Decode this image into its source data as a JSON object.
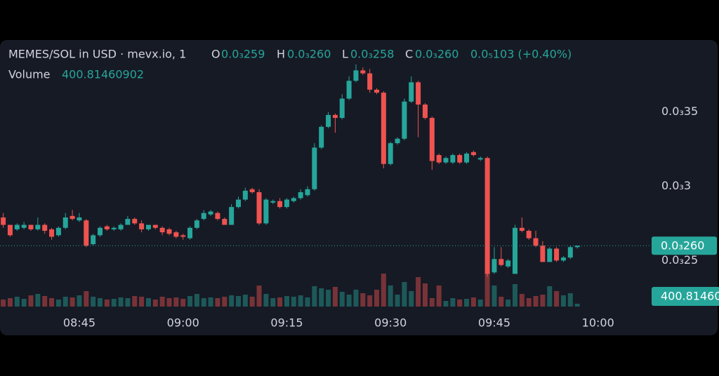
{
  "chart_data": {
    "type": "candlestick",
    "legend_header": {
      "pair": "MEMES/SOL in USD · mevx.io, 1",
      "o_key": "O",
      "o": "0.0₃259",
      "h_key": "H",
      "h": "0.0₃260",
      "l_key": "L",
      "l": "0.0₃258",
      "c_key": "C",
      "c": "0.0₃260",
      "change": "0.0₅103 (+0.40%)",
      "volume_key": "Volume"
    },
    "categories": [
      null,
      null,
      null,
      null,
      null,
      null,
      null,
      null,
      null,
      null,
      null,
      "08:45",
      null,
      null,
      null,
      null,
      null,
      null,
      null,
      null,
      null,
      null,
      null,
      null,
      null,
      null,
      "09:00",
      null,
      null,
      null,
      null,
      null,
      null,
      null,
      null,
      null,
      null,
      null,
      null,
      null,
      null,
      "09:15",
      null,
      null,
      null,
      null,
      null,
      null,
      null,
      null,
      null,
      null,
      null,
      null,
      null,
      null,
      "09:30",
      null,
      null,
      null,
      null,
      null,
      null,
      null,
      null,
      null,
      null,
      null,
      null,
      null,
      null,
      "09:45",
      null,
      null,
      null,
      null,
      null,
      null,
      null,
      null,
      null,
      null,
      null,
      null,
      null,
      null,
      "10:00",
      null,
      null,
      null,
      null,
      null,
      null
    ],
    "open": [
      0.000279,
      0.000274,
      0.000271,
      0.000272,
      0.000274,
      0.000271,
      0.000274,
      0.000271,
      0.000267,
      0.000272,
      0.00028,
      0.000277,
      0.000277,
      0.000261,
      0.000267,
      0.000273,
      0.000271,
      0.000271,
      0.000274,
      0.000278,
      0.000275,
      0.000271,
      0.000274,
      0.000272,
      0.000271,
      0.000269,
      0.000267,
      0.000265,
      0.000272,
      0.000278,
      0.000281,
      0.000282,
      0.000278,
      0.000274,
      0.000286,
      0.000291,
      0.000298,
      0.000296,
      0.000275,
      0.000289,
      0.00029,
      0.000286,
      0.00029,
      0.000292,
      0.000294,
      0.000298,
      0.000326,
      0.00034,
      0.000348,
      0.000346,
      0.000359,
      0.000371,
      0.000378,
      0.000376,
      0.000365,
      0.000363,
      0.000315,
      0.000329,
      0.000332,
      0.000357,
      0.00037,
      0.000355,
      0.000346,
      0.000321,
      0.000316,
      0.000316,
      0.000321,
      0.000316,
      0.000323,
      0.000318,
      0.000319,
      0.000242,
      0.000251,
      0.000246,
      0.000241,
      0.000272,
      0.00027,
      0.000265,
      0.00026,
      0.000249,
      0.000258,
      0.00025,
      0.000252,
      0.000259,
      null,
      null,
      null,
      null,
      null,
      null,
      null,
      null,
      null
    ],
    "high": [
      0.000282,
      0.000274,
      0.000275,
      0.000276,
      0.000274,
      0.000279,
      0.000275,
      0.000272,
      0.000273,
      0.000282,
      0.000284,
      0.000282,
      0.000278,
      0.000268,
      0.000273,
      0.000274,
      0.000273,
      0.000275,
      0.00028,
      0.000279,
      0.000277,
      0.000274,
      0.000274,
      0.000273,
      0.000272,
      0.00027,
      0.000268,
      0.000273,
      0.000278,
      0.000284,
      0.000284,
      0.000283,
      0.000279,
      0.000288,
      0.000293,
      0.000299,
      0.000299,
      0.000298,
      0.000292,
      0.000291,
      0.000292,
      0.000292,
      0.000293,
      0.000298,
      0.0003,
      0.000329,
      0.000341,
      0.00035,
      0.000349,
      0.000362,
      0.000374,
      0.000382,
      0.00038,
      0.000379,
      0.000366,
      0.000364,
      0.00033,
      0.000333,
      0.000359,
      0.000374,
      0.000371,
      0.000356,
      0.000347,
      0.000322,
      0.00032,
      0.000322,
      0.000322,
      0.000323,
      0.000324,
      0.00032,
      0.00032,
      0.000259,
      0.000259,
      0.000251,
      0.000274,
      0.000279,
      0.000271,
      0.00027,
      0.000263,
      0.000259,
      0.000259,
      0.000253,
      0.00026,
      0.00026,
      null,
      null,
      null,
      null,
      null,
      null,
      null,
      null,
      null
    ],
    "low": [
      0.000272,
      0.000266,
      0.00027,
      0.000271,
      0.00027,
      0.00027,
      0.000268,
      0.000264,
      0.000266,
      0.000271,
      0.000277,
      0.000276,
      0.000259,
      0.00026,
      0.000266,
      0.00027,
      0.00027,
      0.00027,
      0.000274,
      0.000274,
      0.000269,
      0.00027,
      0.000271,
      0.000267,
      0.000267,
      0.000265,
      0.000264,
      0.000264,
      0.000271,
      0.000277,
      0.00028,
      0.000277,
      0.000274,
      0.000274,
      0.000285,
      0.00029,
      0.000295,
      0.000274,
      0.000274,
      0.000288,
      0.000285,
      0.000285,
      0.000289,
      0.000291,
      0.000293,
      0.000297,
      0.000325,
      0.000339,
      0.000336,
      0.000345,
      0.000358,
      0.00037,
      0.000375,
      0.000363,
      0.000362,
      0.000312,
      0.000314,
      0.000328,
      0.000331,
      0.000356,
      0.000333,
      0.000345,
      0.000311,
      0.000315,
      0.000315,
      0.000315,
      0.000315,
      0.000315,
      0.00032,
      0.000317,
      0.000239,
      0.000241,
      0.000246,
      0.000245,
      0.000241,
      0.000269,
      0.000264,
      0.000259,
      0.000249,
      0.000249,
      0.000249,
      0.000249,
      0.000251,
      0.000258,
      null,
      null,
      null,
      null,
      null,
      null,
      null,
      null,
      null
    ],
    "close": [
      0.000274,
      0.000267,
      0.000274,
      0.000274,
      0.000271,
      0.000274,
      0.00027,
      0.000266,
      0.000272,
      0.000279,
      0.000278,
      0.000279,
      0.00026,
      0.000267,
      0.000272,
      0.000271,
      0.000272,
      0.000274,
      0.000278,
      0.000275,
      0.000271,
      0.000274,
      0.000272,
      0.000269,
      0.000268,
      0.000266,
      0.000266,
      0.000272,
      0.000277,
      0.000282,
      0.000283,
      0.000278,
      0.000274,
      0.000286,
      0.000291,
      0.000297,
      0.000296,
      0.000275,
      0.000291,
      0.00029,
      0.000286,
      0.000291,
      0.000292,
      0.000296,
      0.000298,
      0.000326,
      0.00034,
      0.000348,
      0.000346,
      0.000359,
      0.000371,
      0.000378,
      0.000376,
      0.000365,
      0.000363,
      0.000315,
      0.000329,
      0.000332,
      0.000357,
      0.00037,
      0.000355,
      0.000346,
      0.000317,
      0.000316,
      0.000319,
      0.000321,
      0.000316,
      0.000322,
      0.000321,
      0.000319,
      0.000241,
      0.000251,
      0.000247,
      0.00025,
      0.000272,
      0.00027,
      0.000265,
      0.00026,
      0.000249,
      0.000258,
      0.00025,
      0.000252,
      0.000259,
      0.00026,
      null,
      null,
      null,
      null,
      null,
      null,
      null,
      null,
      null
    ],
    "volume": [
      1000,
      1200,
      1400,
      1100,
      1600,
      1800,
      1500,
      1200,
      1000,
      1400,
      1300,
      1600,
      2200,
      1400,
      1200,
      1000,
      1100,
      1300,
      1200,
      1500,
      1400,
      1200,
      1000,
      1400,
      1200,
      1300,
      1100,
      1500,
      1800,
      1200,
      1300,
      1200,
      1400,
      1600,
      1500,
      1700,
      1400,
      3000,
      1800,
      1200,
      1300,
      1500,
      1400,
      1600,
      1300,
      2900,
      2600,
      2400,
      2800,
      2100,
      1700,
      2400,
      1900,
      1600,
      2400,
      4700,
      3000,
      1700,
      3500,
      2200,
      4200,
      3300,
      1200,
      3000,
      800,
      1200,
      1000,
      1100,
      1300,
      1000,
      4700,
      3000,
      1400,
      1000,
      3200,
      1800,
      1200,
      1500,
      1700,
      2900,
      2200,
      1600,
      1900,
      400.81460902,
      null,
      null,
      null,
      null,
      null,
      null,
      null,
      null,
      null
    ],
    "up_color": "#26a69a",
    "down_color": "#ef5350",
    "ylim": [
      0.000219,
      0.000398
    ],
    "yticks": [
      {
        "value": 0.00025,
        "label": "0.0₃25"
      },
      {
        "value": 0.0003,
        "label": "0.0₃3"
      },
      {
        "value": 0.00035,
        "label": "0.0₃35"
      }
    ],
    "grid": false
  }
}
